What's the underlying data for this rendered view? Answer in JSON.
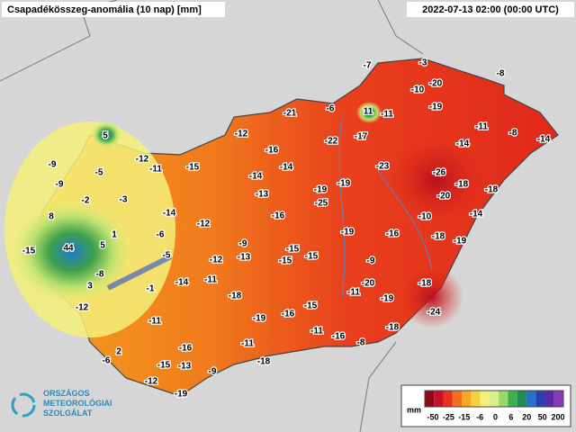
{
  "header": {
    "title": "Csapadékösszeg-anomália (10 nap) [mm]",
    "timestamp": "2022-07-13 02:00 (00:00 UTC)"
  },
  "labels": [
    -7,
    -3,
    -8,
    -10,
    -20,
    -21,
    -6,
    11,
    -11,
    -19,
    5,
    -12,
    -22,
    -17,
    -11,
    -8,
    -14,
    -14,
    -9,
    -5,
    -12,
    -11,
    -15,
    -16,
    -14,
    -14,
    -23,
    -26,
    -9,
    -19,
    -19,
    -18,
    -18,
    -13,
    -2,
    -3,
    -25,
    -20,
    8,
    -14,
    -12,
    -16,
    -10,
    -14,
    44,
    5,
    1,
    -6,
    -9,
    -19,
    -16,
    -18,
    -19,
    -15,
    -5,
    -15,
    -15,
    -12,
    -13,
    -15,
    -9,
    -8,
    3,
    -1,
    -14,
    -11,
    -20,
    -18,
    -11,
    -19,
    -18,
    -15,
    -12,
    -11,
    -19,
    -16,
    -24,
    -11,
    -16,
    -18,
    -8,
    -11,
    2,
    -16,
    -18,
    -6,
    -15,
    -13,
    -9,
    -12,
    -19
  ],
  "legend": {
    "unit": "mm",
    "ticks": [
      -50,
      -25,
      -15,
      -6,
      0,
      6,
      20,
      50,
      200
    ],
    "colors": [
      "#8b0a1a",
      "#c8102e",
      "#e8321e",
      "#f0701e",
      "#f7a823",
      "#f7d23a",
      "#f5f07a",
      "#d8f08a",
      "#9ad86a",
      "#3fb04a",
      "#1f8a5a",
      "#2a6fd0",
      "#2a3fb0",
      "#5a2aa8",
      "#8a3ab8"
    ]
  },
  "logo": {
    "lines": [
      "ORSZÁGOS",
      "METEOROLÓGIAI",
      "SZOLGÁLAT"
    ]
  }
}
